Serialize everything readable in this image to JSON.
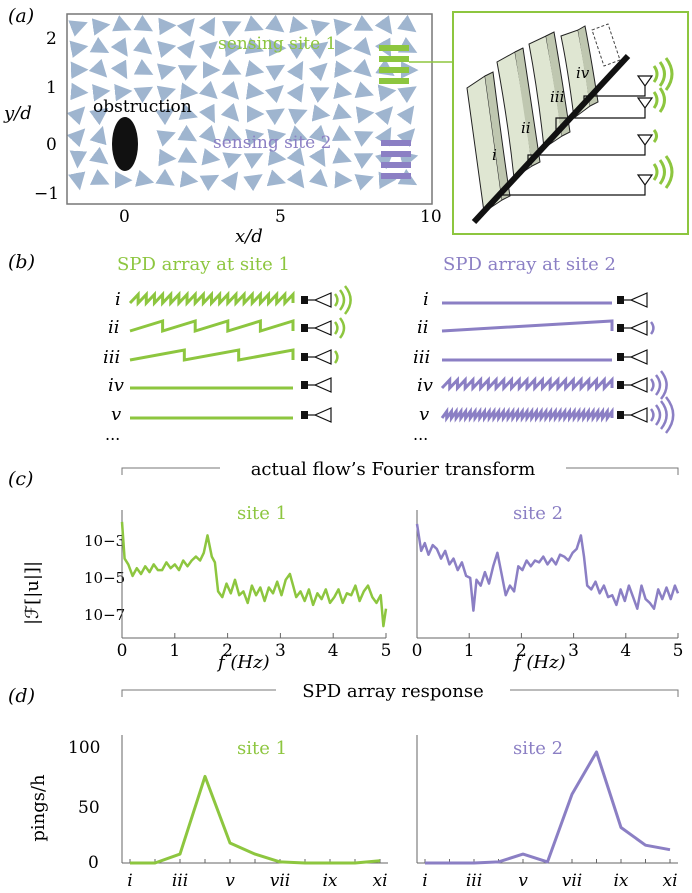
{
  "colors": {
    "green": "#8dc63f",
    "purple": "#8b7fc4",
    "arrow": "#9fb5cf",
    "black": "#111111",
    "axis": "#666666",
    "panel_bg": "#e8ece0"
  },
  "panel_a": {
    "label": "(a)",
    "xlabel": "x/d",
    "ylabel": "y/d",
    "xticks": [
      "0",
      "5",
      "10"
    ],
    "yticks": [
      "2",
      "1",
      "0",
      "−1"
    ],
    "obstruction_label": "obstruction",
    "site1_label": "sensing site 1",
    "site2_label": "sensing site 2",
    "inset_plate_labels": [
      "i",
      "ii",
      "iii",
      "iv"
    ]
  },
  "panel_b": {
    "label": "(b)",
    "site1_title": "SPD array at site 1",
    "site2_title": "SPD array at site 2",
    "row_labels": [
      "i",
      "ii",
      "iii",
      "iv",
      "v"
    ],
    "ellipsis": "..."
  },
  "panel_c": {
    "label": "(c)",
    "header": "actual flow’s Fourier transform",
    "ylabel": "|ℱ[|u|]|",
    "site1_title": "site 1",
    "site2_title": "site 2",
    "xticks": [
      "0",
      "1",
      "2",
      "3",
      "4",
      "5"
    ],
    "yticks": [
      "10−3",
      "10−5",
      "10−7"
    ],
    "xlabel": "f (Hz)"
  },
  "panel_d": {
    "label": "(d)",
    "header": "SPD array response",
    "ylabel": "pings/h",
    "site1_title": "site 1",
    "site2_title": "site 2",
    "yticks": [
      "100",
      "50",
      "0"
    ],
    "xticks": [
      "i",
      "iii",
      "v",
      "vii",
      "ix",
      "xi"
    ]
  },
  "chart_data": [
    {
      "type": "line",
      "title": "site 1 Fourier spectrum",
      "xlabel": "f (Hz)",
      "ylabel": "|F[|u|]|",
      "xlim": [
        0,
        5
      ],
      "ylim_log10": [
        -7.6,
        -2.0
      ],
      "series": [
        {
          "name": "site 1",
          "x": [
            0,
            0.05,
            0.12,
            0.2,
            0.28,
            0.36,
            0.44,
            0.52,
            0.6,
            0.68,
            0.76,
            0.84,
            0.92,
            1.0,
            1.08,
            1.16,
            1.24,
            1.32,
            1.4,
            1.48,
            1.55,
            1.62,
            1.7,
            1.76,
            1.82,
            1.9,
            1.98,
            2.06,
            2.14,
            2.22,
            2.3,
            2.38,
            2.46,
            2.54,
            2.62,
            2.7,
            2.78,
            2.86,
            2.94,
            3.02,
            3.1,
            3.18,
            3.24,
            3.3,
            3.38,
            3.46,
            3.54,
            3.62,
            3.7,
            3.78,
            3.86,
            3.94,
            4.02,
            4.1,
            4.18,
            4.26,
            4.34,
            4.42,
            4.5,
            4.58,
            4.66,
            4.74,
            4.82,
            4.9,
            4.95,
            5.0
          ],
          "log10_values": [
            -2.1,
            -4.0,
            -4.3,
            -4.9,
            -4.5,
            -4.8,
            -4.4,
            -4.7,
            -4.3,
            -4.6,
            -4.6,
            -4.2,
            -4.5,
            -4.3,
            -4.6,
            -4.1,
            -4.4,
            -4.1,
            -3.9,
            -4.1,
            -3.7,
            -2.8,
            -3.9,
            -4.2,
            -5.7,
            -6.0,
            -5.3,
            -5.8,
            -5.1,
            -5.9,
            -5.7,
            -6.3,
            -5.4,
            -5.9,
            -5.5,
            -6.2,
            -5.5,
            -5.8,
            -5.2,
            -5.9,
            -5.1,
            -4.8,
            -5.4,
            -6.0,
            -5.7,
            -6.2,
            -5.6,
            -6.4,
            -5.8,
            -6.1,
            -5.6,
            -6.3,
            -6.0,
            -5.6,
            -6.3,
            -5.8,
            -5.9,
            -5.4,
            -6.2,
            -5.7,
            -5.4,
            -6.0,
            -6.3,
            -5.9,
            -7.5,
            -6.6
          ]
        }
      ]
    },
    {
      "type": "line",
      "title": "site 2 Fourier spectrum",
      "xlabel": "f (Hz)",
      "ylabel": "|F[|u|]|",
      "xlim": [
        0,
        5
      ],
      "ylim_log10": [
        -7.6,
        -2.0
      ],
      "series": [
        {
          "name": "site 2",
          "x": [
            0,
            0.08,
            0.15,
            0.22,
            0.3,
            0.38,
            0.46,
            0.54,
            0.62,
            0.7,
            0.78,
            0.86,
            0.94,
            1.02,
            1.08,
            1.14,
            1.22,
            1.3,
            1.38,
            1.46,
            1.54,
            1.62,
            1.7,
            1.78,
            1.86,
            1.94,
            2.02,
            2.1,
            2.18,
            2.26,
            2.34,
            2.42,
            2.5,
            2.58,
            2.66,
            2.74,
            2.82,
            2.9,
            2.98,
            3.06,
            3.14,
            3.2,
            3.26,
            3.34,
            3.42,
            3.5,
            3.58,
            3.66,
            3.74,
            3.82,
            3.9,
            3.98,
            4.06,
            4.14,
            4.22,
            4.3,
            4.38,
            4.46,
            4.54,
            4.62,
            4.7,
            4.78,
            4.86,
            4.94,
            5.0
          ],
          "log10_values": [
            -2.2,
            -3.6,
            -3.2,
            -3.8,
            -3.3,
            -3.5,
            -4.0,
            -3.6,
            -4.3,
            -4.0,
            -4.6,
            -4.2,
            -4.9,
            -5.0,
            -6.7,
            -5.1,
            -5.4,
            -4.7,
            -5.3,
            -4.4,
            -3.7,
            -4.8,
            -5.9,
            -5.4,
            -5.7,
            -4.4,
            -4.6,
            -4.1,
            -4.4,
            -4.1,
            -4.2,
            -3.9,
            -4.3,
            -4.0,
            -4.3,
            -3.8,
            -3.9,
            -4.1,
            -3.7,
            -3.5,
            -2.8,
            -3.9,
            -5.4,
            -5.6,
            -5.2,
            -5.8,
            -5.4,
            -6.0,
            -5.9,
            -6.4,
            -5.6,
            -6.2,
            -5.4,
            -6.0,
            -6.6,
            -5.4,
            -6.1,
            -6.3,
            -6.6,
            -5.6,
            -6.1,
            -5.5,
            -6.1,
            -5.4,
            -5.8
          ]
        }
      ]
    },
    {
      "type": "line",
      "title": "SPD array response site 1",
      "xlabel": "",
      "ylabel": "pings/h",
      "ylim": [
        0,
        110
      ],
      "categories": [
        "i",
        "ii",
        "iii",
        "iv",
        "v",
        "vi",
        "vii",
        "viii",
        "ix",
        "x",
        "xi"
      ],
      "series": [
        {
          "name": "site 1",
          "values": [
            0,
            0,
            8,
            78,
            18,
            8,
            1,
            0,
            0,
            0,
            2
          ]
        }
      ]
    },
    {
      "type": "line",
      "title": "SPD array response site 2",
      "xlabel": "",
      "ylabel": "pings/h",
      "ylim": [
        0,
        110
      ],
      "categories": [
        "i",
        "ii",
        "iii",
        "iv",
        "v",
        "vi",
        "vii",
        "viii",
        "ix",
        "x",
        "xi"
      ],
      "series": [
        {
          "name": "site 2",
          "values": [
            0,
            0,
            0,
            1,
            8,
            1,
            62,
            100,
            32,
            16,
            12
          ]
        }
      ]
    }
  ]
}
